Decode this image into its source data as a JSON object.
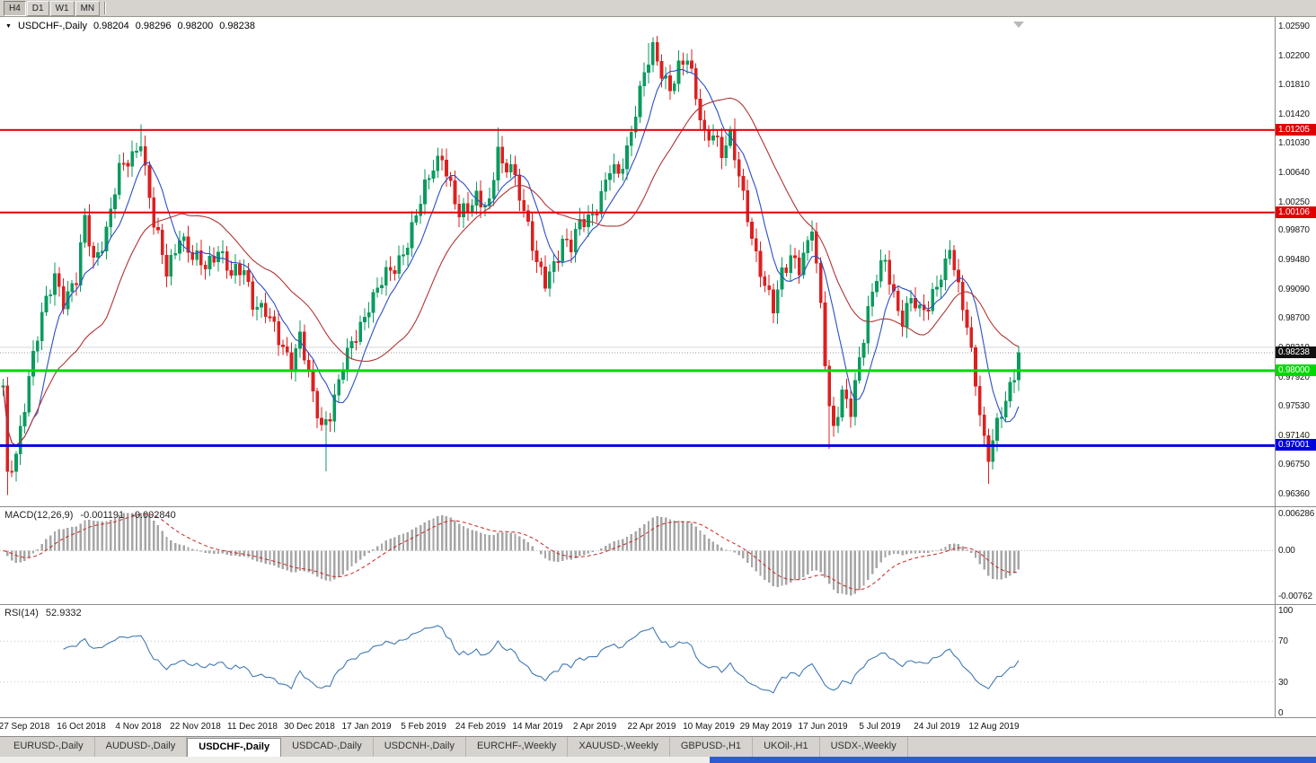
{
  "toolbar": {
    "timeframes": [
      {
        "label": "H4",
        "active": true
      },
      {
        "label": "D1",
        "active": false
      },
      {
        "label": "W1",
        "active": false
      },
      {
        "label": "MN",
        "active": false
      }
    ]
  },
  "chart": {
    "title": {
      "symbol_period": "USDCHF-,Daily",
      "open": "0.98204",
      "high": "0.98296",
      "low": "0.98200",
      "close": "0.98238"
    }
  },
  "indicators": {
    "macd": {
      "label": "MACD(12,26,9)",
      "value_main": "-0.001191",
      "value_signal": "-0.002840"
    },
    "rsi": {
      "label": "RSI(14)",
      "value": "52.9332"
    }
  },
  "tabs": {
    "active_index": 2,
    "items": [
      {
        "label": "EURUSD-,Daily"
      },
      {
        "label": "AUDUSD-,Daily"
      },
      {
        "label": "USDCHF-,Daily"
      },
      {
        "label": "USDCAD-,Daily"
      },
      {
        "label": "USDCNH-,Daily"
      },
      {
        "label": "EURCHF-,Weekly"
      },
      {
        "label": "XAUUSD-,Weekly"
      },
      {
        "label": "GBPUSD-,H1"
      },
      {
        "label": "UKOil-,H1"
      },
      {
        "label": "USDX-,Weekly"
      }
    ]
  },
  "chart_data": {
    "type": "candlestick",
    "symbol": "USDCHF",
    "period": "Daily",
    "current_bar": {
      "open": 0.98204,
      "high": 0.98296,
      "low": 0.982,
      "close": 0.98238
    },
    "y_axis": {
      "min": 0.9636,
      "max": 1.0259,
      "tick_step": 0.0039,
      "ticks": [
        "1.02590",
        "1.02200",
        "1.01810",
        "1.01420",
        "1.01030",
        "1.00640",
        "1.00250",
        "0.99870",
        "0.99480",
        "0.99090",
        "0.98700",
        "0.98310",
        "0.97920",
        "0.97530",
        "0.97140",
        "0.96750",
        "0.96360"
      ]
    },
    "x_labels": [
      "27 Sep 2018",
      "16 Oct 2018",
      "4 Nov 2018",
      "22 Nov 2018",
      "11 Dec 2018",
      "30 Dec 2018",
      "17 Jan 2019",
      "5 Feb 2019",
      "24 Feb 2019",
      "14 Mar 2019",
      "2 Apr 2019",
      "22 Apr 2019",
      "10 May 2019",
      "29 May 2019",
      "17 Jun 2019",
      "5 Jul 2019",
      "24 Jul 2019",
      "12 Aug 2019"
    ],
    "levels": [
      {
        "price": 1.01205,
        "label": "1.01205",
        "color": "#e10000",
        "thickness": 2,
        "type": "resistance"
      },
      {
        "price": 1.00106,
        "label": "1.00106",
        "color": "#e10000",
        "thickness": 2,
        "type": "resistance"
      },
      {
        "price": 0.98,
        "label": "0.98000",
        "color": "#00d800",
        "thickness": 3,
        "type": "support"
      },
      {
        "price": 0.97001,
        "label": "0.97001",
        "color": "#0000dc",
        "thickness": 3,
        "type": "support"
      }
    ],
    "current_price": {
      "value": 0.98238,
      "label": "0.98238",
      "box_color": "#111111"
    },
    "gray_line": 0.9831,
    "colors": {
      "bull": "#0a9b5e",
      "bear": "#dd2020"
    },
    "overlays": [
      {
        "name": "MA-fast",
        "period": 8,
        "color": "#2c4fc4"
      },
      {
        "name": "MA-slow",
        "period": 24,
        "color": "#b23434"
      }
    ],
    "candles": {
      "count": 237,
      "first_open": 0.978,
      "close_anchors": [
        [
          0,
          0.978
        ],
        [
          1,
          0.9652
        ],
        [
          3,
          0.969
        ],
        [
          6,
          0.9795
        ],
        [
          9,
          0.9868
        ],
        [
          12,
          0.9928
        ],
        [
          14,
          0.9898
        ],
        [
          17,
          0.9918
        ],
        [
          19,
          0.9998
        ],
        [
          21,
          0.9948
        ],
        [
          24,
          0.9988
        ],
        [
          27,
          1.0062
        ],
        [
          30,
          1.0088
        ],
        [
          32,
          1.0112
        ],
        [
          33,
          1.0068
        ],
        [
          35,
          0.9992
        ],
        [
          38,
          0.9932
        ],
        [
          41,
          0.9984
        ],
        [
          44,
          0.9946
        ],
        [
          47,
          0.994
        ],
        [
          50,
          0.9966
        ],
        [
          53,
          0.9922
        ],
        [
          56,
          0.9936
        ],
        [
          58,
          0.9896
        ],
        [
          61,
          0.9876
        ],
        [
          64,
          0.984
        ],
        [
          67,
          0.9816
        ],
        [
          69,
          0.9846
        ],
        [
          72,
          0.9762
        ],
        [
          74,
          0.9726
        ],
        [
          76,
          0.9748
        ],
        [
          79,
          0.9802
        ],
        [
          82,
          0.9846
        ],
        [
          85,
          0.9892
        ],
        [
          88,
          0.9916
        ],
        [
          91,
          0.9936
        ],
        [
          94,
          0.9976
        ],
        [
          97,
          1.0022
        ],
        [
          100,
          1.0072
        ],
        [
          102,
          1.0092
        ],
        [
          104,
          1.0046
        ],
        [
          106,
          1.0002
        ],
        [
          108,
          1.0012
        ],
        [
          110,
          1.0036
        ],
        [
          113,
          1.0022
        ],
        [
          115,
          1.0092
        ],
        [
          116,
          1.0062
        ],
        [
          118,
          1.0076
        ],
        [
          120,
          1.0042
        ],
        [
          122,
          0.9992
        ],
        [
          124,
          0.9936
        ],
        [
          126,
          0.9916
        ],
        [
          128,
          0.9946
        ],
        [
          130,
          0.9976
        ],
        [
          132,
          0.9962
        ],
        [
          134,
          0.9992
        ],
        [
          137,
          1.0012
        ],
        [
          139,
          1.0036
        ],
        [
          141,
          1.0066
        ],
        [
          143,
          1.0056
        ],
        [
          145,
          1.0096
        ],
        [
          147,
          1.0152
        ],
        [
          149,
          1.0196
        ],
        [
          151,
          1.0222
        ],
        [
          153,
          1.0196
        ],
        [
          155,
          1.0182
        ],
        [
          157,
          1.0206
        ],
        [
          159,
          1.0212
        ],
        [
          161,
          1.0162
        ],
        [
          163,
          1.0116
        ],
        [
          165,
          1.0122
        ],
        [
          167,
          1.0086
        ],
        [
          169,
          1.0106
        ],
        [
          171,
          1.0062
        ],
        [
          173,
          1.0012
        ],
        [
          175,
          0.9952
        ],
        [
          177,
          0.9906
        ],
        [
          179,
          0.9882
        ],
        [
          181,
          0.9936
        ],
        [
          183,
          0.9956
        ],
        [
          185,
          0.9932
        ],
        [
          187,
          0.9962
        ],
        [
          188,
          0.9992
        ],
        [
          190,
          0.9892
        ],
        [
          192,
          0.9752
        ],
        [
          193,
          0.9722
        ],
        [
          195,
          0.9762
        ],
        [
          197,
          0.9746
        ],
        [
          199,
          0.9822
        ],
        [
          201,
          0.9882
        ],
        [
          203,
          0.9922
        ],
        [
          205,
          0.9942
        ],
        [
          207,
          0.9902
        ],
        [
          209,
          0.9872
        ],
        [
          211,
          0.9896
        ],
        [
          213,
          0.9872
        ],
        [
          215,
          0.9886
        ],
        [
          217,
          0.9922
        ],
        [
          219,
          0.9942
        ],
        [
          220,
          0.9962
        ],
        [
          222,
          0.9902
        ],
        [
          224,
          0.9862
        ],
        [
          226,
          0.9792
        ],
        [
          228,
          0.9706
        ],
        [
          229,
          0.9682
        ],
        [
          231,
          0.9722
        ],
        [
          233,
          0.9762
        ],
        [
          235,
          0.9802
        ],
        [
          236,
          0.98238
        ]
      ],
      "wick_overrides": [
        {
          "i": 1,
          "low": 0.9634
        },
        {
          "i": 32,
          "high": 1.0128
        },
        {
          "i": 75,
          "low": 0.9666
        },
        {
          "i": 115,
          "high": 1.0124
        },
        {
          "i": 150,
          "high": 1.0236
        },
        {
          "i": 151,
          "high": 1.023
        },
        {
          "i": 188,
          "high": 1.0
        },
        {
          "i": 192,
          "low": 0.9696
        },
        {
          "i": 229,
          "low": 0.9649
        }
      ]
    },
    "macd_panel": {
      "axis_max": 0.006286,
      "axis_min": -0.00762,
      "labels": [
        "0.006286",
        "0.00",
        "-0.00762"
      ],
      "histogram_color": "#a6a6a6",
      "signal_color": "#cc2222"
    },
    "rsi_panel": {
      "levels": [
        100,
        70,
        30,
        0
      ],
      "labels": [
        "100",
        "70",
        "30",
        "0"
      ],
      "line_color": "#4179b5",
      "value": 52.9332
    }
  }
}
